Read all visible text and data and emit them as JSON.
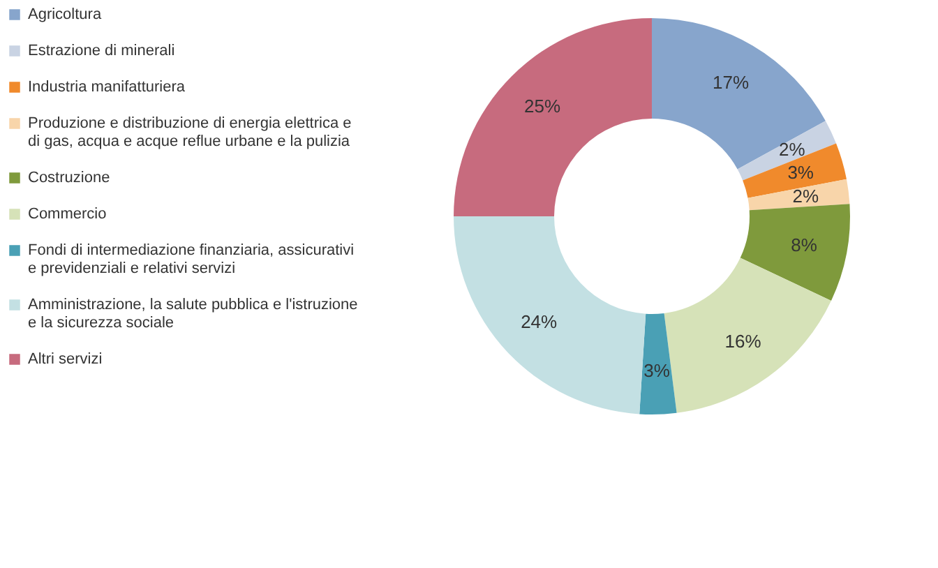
{
  "chart_data": {
    "type": "donut",
    "categories": [
      "Agricoltura",
      "Estrazione di minerali",
      "Industria manifatturiera",
      "Produzione e distribuzione di energia elettrica e di gas, acqua e acque reflue urbane e la pulizia",
      "Costruzione",
      "Commercio",
      "Fondi di intermediazione finanziaria, assicurativi e previdenziali e relativi servizi",
      "Amministrazione, la salute pubblica e l'istruzione e la sicurezza sociale",
      "Altri servizi"
    ],
    "values": [
      17,
      2,
      3,
      2,
      8,
      16,
      3,
      24,
      25
    ],
    "colors": [
      "#87a5cc",
      "#c9d3e3",
      "#f08a2c",
      "#f8d5aa",
      "#7f9a3c",
      "#d6e2b8",
      "#4aa0b5",
      "#c3e0e3",
      "#c76b7e"
    ],
    "value_labels": [
      "17%",
      "2%",
      "3%",
      "2%",
      "8%",
      "16%",
      "3%",
      "24%",
      "25%"
    ],
    "legend": "left"
  }
}
